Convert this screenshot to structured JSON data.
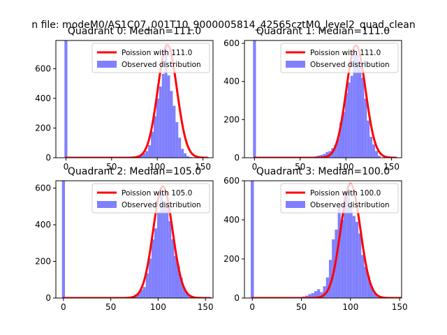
{
  "figure": {
    "suptitle": "n file: modeM0/AS1C07_001T10_9000005814_42565cztM0_level2_quad_clean"
  },
  "colors": {
    "fit_line": "#ff0000",
    "hist_fill": "#8080ff",
    "spike": "#8080ff",
    "axes": "#000000",
    "background": "#ffffff"
  },
  "chart_data": [
    {
      "type": "bar",
      "title": "Quadrant 0: Median=111.0",
      "xlim": [
        -11,
        161
      ],
      "ylim": [
        0,
        790
      ],
      "xticks": [
        0,
        50,
        100,
        150
      ],
      "yticks": [
        0,
        200,
        400,
        600
      ],
      "legend": {
        "placement": "top-right",
        "line_label": "Poission with 111.0",
        "hist_label": "Observed distribution"
      },
      "fit": {
        "mean": 111,
        "peak": 760,
        "sigma": 10.5
      },
      "spike": {
        "x": 0,
        "value": 790
      },
      "histogram": {
        "bin_width": 3,
        "bins_start": [
          69,
          72,
          75,
          78,
          81,
          84,
          87,
          90,
          93,
          96,
          99,
          102,
          105,
          108,
          111,
          114,
          117,
          120,
          123,
          126,
          129,
          132,
          135
        ],
        "values": [
          5,
          6,
          8,
          15,
          20,
          30,
          45,
          85,
          175,
          280,
          400,
          480,
          565,
          760,
          555,
          450,
          350,
          240,
          135,
          60,
          30,
          10,
          5
        ]
      }
    },
    {
      "type": "bar",
      "title": "Quadrant 1: Median=111.0",
      "xlim": [
        -11,
        161
      ],
      "ylim": [
        0,
        615
      ],
      "xticks": [
        0,
        50,
        100,
        150
      ],
      "yticks": [
        0,
        200,
        400,
        600
      ],
      "legend": {
        "placement": "top-right",
        "line_label": "Poission with 111.0",
        "hist_label": "Observed distribution"
      },
      "fit": {
        "mean": 111,
        "peak": 590,
        "sigma": 10.5
      },
      "spike": {
        "x": 0,
        "value": 615
      },
      "histogram": {
        "bin_width": 3,
        "bins_start": [
          60,
          63,
          66,
          69,
          72,
          75,
          78,
          81,
          84,
          87,
          90,
          93,
          96,
          99,
          102,
          105,
          108,
          111,
          114,
          117,
          120,
          123,
          126,
          129,
          132,
          135
        ],
        "values": [
          3,
          5,
          8,
          12,
          15,
          20,
          30,
          35,
          50,
          65,
          100,
          185,
          240,
          340,
          395,
          430,
          560,
          540,
          490,
          420,
          310,
          195,
          110,
          70,
          35,
          10
        ]
      }
    },
    {
      "type": "bar",
      "title": "Quadrant 2: Median=105.0",
      "xlim": [
        -8,
        158
      ],
      "ylim": [
        0,
        640
      ],
      "xticks": [
        0,
        50,
        100,
        150
      ],
      "yticks": [
        0,
        200,
        400,
        600
      ],
      "legend": {
        "placement": "top-right",
        "line_label": "Poission with 105.0",
        "hist_label": "Observed distribution"
      },
      "fit": {
        "mean": 105,
        "peak": 610,
        "sigma": 10.25
      },
      "spike": {
        "x": 0,
        "value": 640
      },
      "histogram": {
        "bin_width": 3,
        "bins_start": [
          66,
          69,
          72,
          75,
          78,
          81,
          84,
          87,
          90,
          93,
          96,
          99,
          102,
          105,
          108,
          111,
          114,
          117,
          120,
          123,
          126,
          129,
          132
        ],
        "values": [
          5,
          8,
          12,
          20,
          25,
          45,
          60,
          135,
          215,
          320,
          380,
          470,
          585,
          500,
          510,
          420,
          320,
          230,
          175,
          110,
          55,
          25,
          10
        ]
      }
    },
    {
      "type": "bar",
      "title": "Quadrant 3: Median=100.0",
      "xlim": [
        -8,
        152
      ],
      "ylim": [
        0,
        600
      ],
      "xticks": [
        0,
        50,
        100,
        150
      ],
      "yticks": [
        0,
        200,
        400,
        600
      ],
      "legend": {
        "placement": "top-right",
        "line_label": "Poission with 100.0",
        "hist_label": "Observed distribution"
      },
      "fit": {
        "mean": 100,
        "peak": 585,
        "sigma": 10
      },
      "spike": {
        "x": 0,
        "value": 600
      },
      "histogram": {
        "bin_width": 3,
        "bins_start": [
          45,
          48,
          51,
          54,
          57,
          60,
          63,
          66,
          69,
          72,
          75,
          78,
          81,
          84,
          87,
          90,
          93,
          96,
          99,
          102,
          105,
          108,
          111,
          114,
          117,
          120,
          123,
          126
        ],
        "values": [
          3,
          5,
          8,
          12,
          20,
          25,
          35,
          45,
          30,
          60,
          105,
          195,
          300,
          350,
          470,
          400,
          520,
          560,
          470,
          420,
          390,
          330,
          220,
          160,
          110,
          60,
          25,
          10
        ]
      }
    }
  ]
}
